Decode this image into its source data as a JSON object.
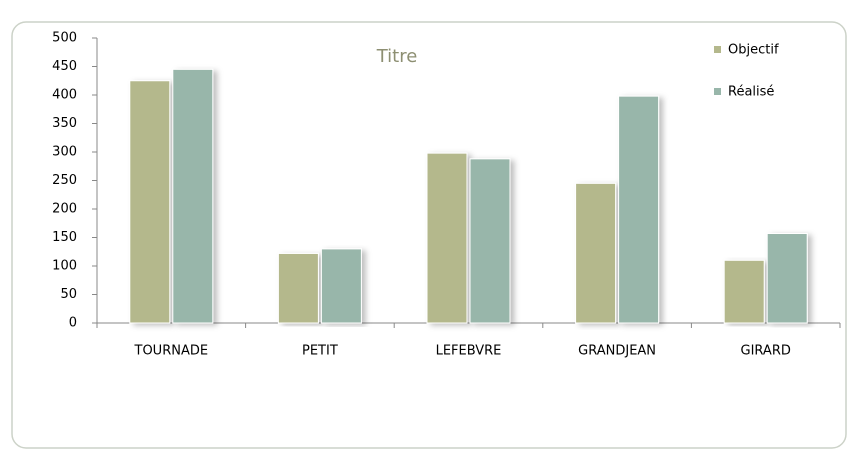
{
  "chart_data": {
    "type": "bar",
    "title": "Titre",
    "categories": [
      "TOURNADE",
      "PETIT",
      "LEFEBVRE",
      "GRANDJEAN",
      "GIRARD"
    ],
    "series": [
      {
        "name": "Objectif",
        "color": "#b4b88c",
        "values": [
          425,
          122,
          298,
          245,
          110
        ]
      },
      {
        "name": "Réalisé",
        "color": "#98b6aa",
        "values": [
          445,
          130,
          288,
          398,
          157
        ]
      }
    ],
    "ylim": [
      0,
      500
    ],
    "yticks": [
      0,
      50,
      100,
      150,
      200,
      250,
      300,
      350,
      400,
      450,
      500
    ],
    "legend": "top-right"
  }
}
